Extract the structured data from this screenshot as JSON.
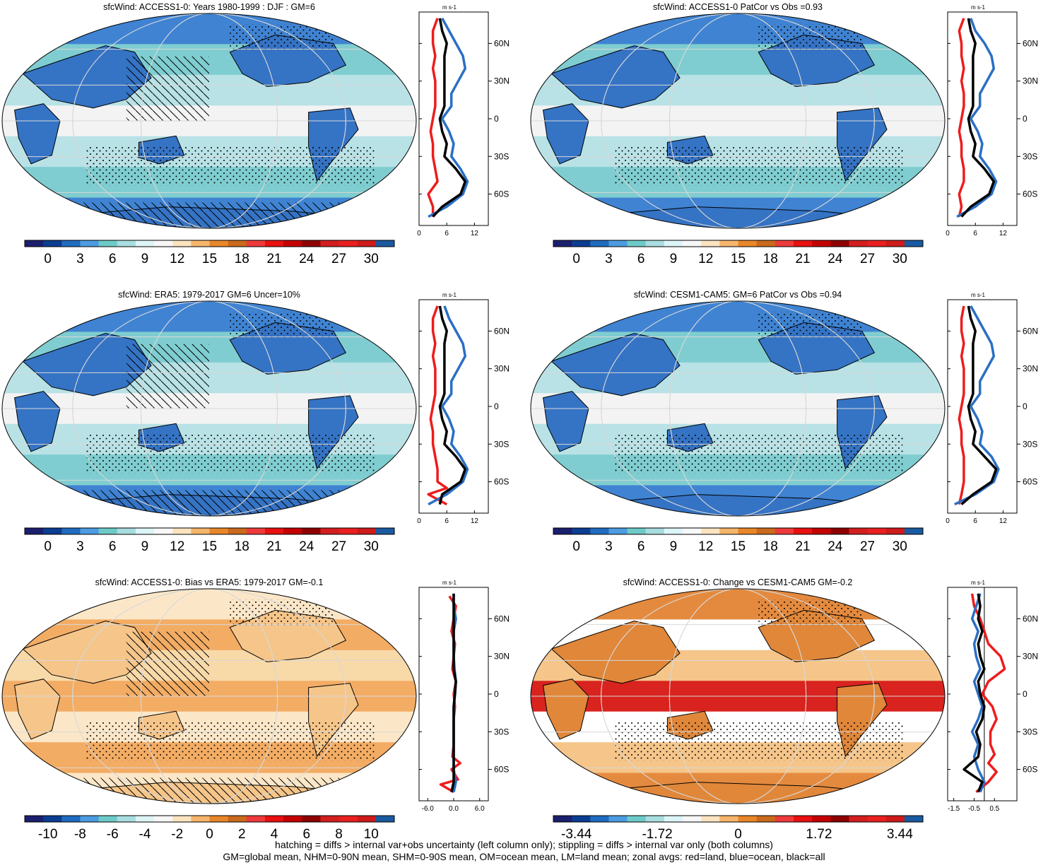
{
  "figure": {
    "footer_line1": "hatching = diffs > internal var+obs uncertainty (left column only); stippling = diffs > internal var only (both columns)",
    "footer_line2": "GM=global mean, NHM=0-90N mean, SHM=0-90S mean, OM=ocean mean, LM=land mean; zonal avgs: red=land, blue=ocean, black=all"
  },
  "colors": {
    "ocean_blue": "#2a6fc4",
    "land_red": "#ee1c1c",
    "all_black": "#000000",
    "coast": "#000000"
  },
  "scales": {
    "abs": {
      "labels": [
        "0",
        "3",
        "6",
        "9",
        "12",
        "15",
        "18",
        "21",
        "24",
        "27",
        "30"
      ],
      "colors": [
        "#1a1f6e",
        "#0b3d91",
        "#1f6bbf",
        "#4d9be0",
        "#6ecac8",
        "#a8dde0",
        "#ddf5f7",
        "#f7f7f7",
        "#fbe3c0",
        "#f6b56c",
        "#e8862a",
        "#c96a1c",
        "#ee3a3a",
        "#e81010",
        "#c40000",
        "#8e0000",
        "#d21e1e",
        "#e82020",
        "#ce1a1a",
        "#1a5aa0"
      ]
    },
    "bias": {
      "labels": [
        "-10",
        "-8",
        "-6",
        "-4",
        "-2",
        "0",
        "2",
        "4",
        "6",
        "8",
        "10"
      ],
      "colors": [
        "#1a1f6e",
        "#0b3d91",
        "#1f6bbf",
        "#4d9be0",
        "#6ecac8",
        "#a8dde0",
        "#ddf5f7",
        "#f7f7f7",
        "#fbe3c0",
        "#f6b56c",
        "#e8862a",
        "#c96a1c",
        "#ee3a3a",
        "#e81010",
        "#c40000",
        "#8e0000",
        "#d21e1e",
        "#e82020",
        "#ce1a1a",
        "#1a5aa0"
      ]
    },
    "change": {
      "labels": [
        "-3.44",
        "-1.72",
        "0",
        "1.72",
        "3.44"
      ],
      "colors": [
        "#1a1f6e",
        "#0b3d91",
        "#1f6bbf",
        "#4d9be0",
        "#6ecac8",
        "#a8dde0",
        "#ddf5f7",
        "#f7f7f7",
        "#fbe3c0",
        "#f6b56c",
        "#e8862a",
        "#c96a1c",
        "#ee3a3a",
        "#e81010",
        "#c40000",
        "#8e0000",
        "#d21e1e",
        "#e82020",
        "#ce1a1a",
        "#1a5aa0"
      ]
    }
  },
  "lat_ticks": [
    "60N",
    "30N",
    "0",
    "30S",
    "60S"
  ],
  "chart_data": [
    {
      "type": "heatmap",
      "title": "sfcWind: ACCESS1-0: Years 1980-1999 : DJF : GM=6",
      "scale": "abs",
      "map_theme": "abs",
      "hatched": true,
      "zonal": {
        "units": "m s-1",
        "xticks": [
          "0",
          "6",
          "12"
        ],
        "xlim": [
          0,
          15
        ],
        "zero_line": false,
        "series": [
          {
            "color_key": "land_red",
            "lat": [
              -78,
              -70,
              -60,
              -50,
              -40,
              -30,
              -20,
              -10,
              0,
              10,
              20,
              30,
              40,
              50,
              60,
              70,
              80
            ],
            "x": [
              3,
              3,
              2,
              4,
              3.5,
              3,
              3,
              2.5,
              3,
              3.5,
              3.5,
              3.5,
              3,
              3.5,
              3,
              3,
              4
            ]
          },
          {
            "color_key": "ocean_blue",
            "lat": [
              -78,
              -70,
              -60,
              -50,
              -40,
              -30,
              -20,
              -10,
              0,
              10,
              20,
              30,
              40,
              50,
              60,
              70,
              80
            ],
            "x": [
              2,
              6,
              9.5,
              10.5,
              9,
              7,
              7.5,
              6.5,
              5,
              7,
              7,
              8.5,
              10,
              9.5,
              8,
              6.5,
              5
            ]
          },
          {
            "color_key": "all_black",
            "lat": [
              -78,
              -70,
              -60,
              -50,
              -40,
              -30,
              -20,
              -10,
              0,
              10,
              20,
              30,
              40,
              50,
              60,
              70,
              80
            ],
            "x": [
              3,
              5,
              9,
              10,
              8,
              5.5,
              6,
              5,
              4.5,
              5.5,
              5.5,
              5.5,
              5.5,
              5.5,
              6,
              5,
              4.5
            ]
          }
        ]
      }
    },
    {
      "type": "heatmap",
      "title": "sfcWind: ACCESS1-0 PatCor vs Obs =0.93",
      "scale": "abs",
      "map_theme": "abs",
      "hatched": false,
      "zonal": {
        "units": "m s-1",
        "xticks": [
          "0",
          "6",
          "12"
        ],
        "xlim": [
          0,
          15
        ],
        "zero_line": false,
        "series": [
          {
            "color_key": "land_red",
            "lat": [
              -78,
              -70,
              -60,
              -50,
              -40,
              -30,
              -20,
              -10,
              0,
              10,
              20,
              30,
              40,
              50,
              60,
              70,
              80
            ],
            "x": [
              2.5,
              3,
              2.5,
              3.5,
              3.5,
              3,
              3,
              2.5,
              3,
              3.5,
              3.5,
              3,
              3.5,
              3,
              3,
              2.5,
              3.5
            ]
          },
          {
            "color_key": "ocean_blue",
            "lat": [
              -78,
              -70,
              -60,
              -50,
              -40,
              -30,
              -20,
              -10,
              0,
              10,
              20,
              30,
              40,
              50,
              60,
              70,
              80
            ],
            "x": [
              2,
              6,
              9.5,
              10.5,
              9,
              7,
              7.5,
              6.5,
              5,
              7,
              7,
              8.5,
              10,
              9.5,
              8,
              6,
              5
            ]
          },
          {
            "color_key": "all_black",
            "lat": [
              -78,
              -70,
              -60,
              -50,
              -40,
              -30,
              -20,
              -10,
              0,
              10,
              20,
              30,
              40,
              50,
              60,
              70,
              80
            ],
            "x": [
              3,
              5,
              9,
              10,
              8,
              5.5,
              6,
              5,
              4.5,
              5.5,
              5.5,
              5.5,
              5.5,
              5.5,
              6,
              5,
              4.5
            ]
          }
        ]
      }
    },
    {
      "type": "heatmap",
      "title": "sfcWind: ERA5: 1979-2017 GM=6 Uncer=10%",
      "scale": "abs",
      "map_theme": "abs",
      "hatched": true,
      "zonal": {
        "units": "m s-1",
        "xticks": [
          "0",
          "6",
          "12"
        ],
        "xlim": [
          0,
          15
        ],
        "zero_line": false,
        "series": [
          {
            "color_key": "land_red",
            "lat": [
              -78,
              -70,
              -65,
              -60,
              -50,
              -40,
              -30,
              -20,
              -10,
              0,
              10,
              20,
              30,
              40,
              50,
              60,
              70,
              80
            ],
            "x": [
              6,
              2,
              6,
              4,
              4,
              3.5,
              3,
              3,
              2.5,
              3,
              3.5,
              3.5,
              3.5,
              3,
              3.5,
              3,
              3,
              4
            ]
          },
          {
            "color_key": "ocean_blue",
            "lat": [
              -78,
              -70,
              -60,
              -50,
              -40,
              -30,
              -20,
              -10,
              0,
              10,
              20,
              30,
              40,
              50,
              60,
              70,
              80
            ],
            "x": [
              2,
              6,
              9.5,
              10.5,
              9,
              7,
              7.5,
              6.5,
              5,
              7,
              7,
              8.5,
              10,
              9.5,
              8,
              6.5,
              5.5
            ]
          },
          {
            "color_key": "all_black",
            "lat": [
              -78,
              -70,
              -60,
              -50,
              -40,
              -30,
              -20,
              -10,
              0,
              10,
              20,
              30,
              40,
              50,
              60,
              70,
              80
            ],
            "x": [
              4.5,
              5,
              9,
              10,
              8,
              5.5,
              6,
              5,
              4.5,
              5.5,
              5.5,
              5.5,
              5.5,
              5.5,
              6,
              5,
              4.5
            ]
          }
        ]
      }
    },
    {
      "type": "heatmap",
      "title": "sfcWind: CESM1-CAM5: GM=6 PatCor vs Obs =0.94",
      "scale": "abs",
      "map_theme": "abs",
      "hatched": false,
      "zonal": {
        "units": "m s-1",
        "xticks": [
          "0",
          "6",
          "12"
        ],
        "xlim": [
          0,
          15
        ],
        "zero_line": false,
        "series": [
          {
            "color_key": "land_red",
            "lat": [
              -78,
              -70,
              -60,
              -50,
              -40,
              -30,
              -20,
              -10,
              0,
              10,
              20,
              30,
              40,
              50,
              60,
              70,
              80
            ],
            "x": [
              2.5,
              3,
              3.5,
              3.5,
              3.5,
              3,
              3,
              2.5,
              3,
              3.5,
              3.5,
              3.5,
              3,
              3.5,
              3,
              3,
              3.5
            ]
          },
          {
            "color_key": "ocean_blue",
            "lat": [
              -78,
              -70,
              -60,
              -50,
              -40,
              -30,
              -20,
              -10,
              0,
              10,
              20,
              30,
              40,
              50,
              60,
              70,
              80
            ],
            "x": [
              1.5,
              6,
              10,
              11,
              9.5,
              7,
              7.5,
              6.5,
              5,
              7,
              7,
              8.5,
              10,
              9.5,
              8,
              6.5,
              5
            ]
          },
          {
            "color_key": "all_black",
            "lat": [
              -78,
              -70,
              -60,
              -50,
              -40,
              -30,
              -20,
              -10,
              0,
              10,
              20,
              30,
              40,
              50,
              60,
              70,
              80
            ],
            "x": [
              3,
              5.5,
              9.5,
              10.5,
              8,
              5.5,
              6,
              5,
              4.5,
              5.5,
              5.5,
              5.5,
              5.5,
              5.5,
              6,
              5,
              4.5
            ]
          }
        ]
      }
    },
    {
      "type": "heatmap",
      "title": "sfcWind: ACCESS1-0: Bias vs ERA5: 1979-2017 GM=-0.1",
      "scale": "bias",
      "map_theme": "bias",
      "hatched": true,
      "zonal": {
        "units": "m s-1",
        "xticks": [
          "-6.0",
          "0.0",
          "6.0"
        ],
        "xlim": [
          -8,
          8
        ],
        "zero_line": false,
        "series": [
          {
            "color_key": "land_red",
            "lat": [
              -78,
              -72,
              -68,
              -60,
              -55,
              -50,
              -40,
              -30,
              -20,
              -10,
              0,
              10,
              20,
              30,
              40,
              50,
              60,
              70,
              78
            ],
            "x": [
              0,
              -3,
              1,
              -0.5,
              1.5,
              -0.3,
              0,
              0,
              0,
              0.3,
              0,
              0.5,
              -0.3,
              0,
              0.3,
              -0.5,
              0,
              0.5,
              -1
            ]
          },
          {
            "color_key": "ocean_blue",
            "lat": [
              -78,
              -70,
              -60,
              -50,
              -40,
              -30,
              -20,
              -10,
              0,
              10,
              20,
              30,
              40,
              50,
              60,
              70,
              80
            ],
            "x": [
              0,
              0.5,
              0,
              0,
              0,
              0,
              0,
              0,
              0.3,
              0.5,
              0.2,
              0,
              0,
              0,
              0.5,
              0,
              0
            ]
          },
          {
            "color_key": "all_black",
            "lat": [
              -78,
              -70,
              -60,
              -50,
              -40,
              -30,
              -20,
              -10,
              0,
              10,
              20,
              30,
              40,
              50,
              60,
              70,
              80
            ],
            "x": [
              -0.5,
              0,
              0,
              0,
              0,
              0,
              0,
              0,
              0.3,
              0.5,
              0,
              0,
              0,
              0,
              0,
              0,
              0
            ]
          }
        ]
      }
    },
    {
      "type": "heatmap",
      "title": "sfcWind: ACCESS1-0: Change vs CESM1-CAM5 GM=-0.2",
      "scale": "change",
      "map_theme": "change",
      "hatched": false,
      "zonal": {
        "units": "m s-1",
        "xticks": [
          "-1.5",
          "-0.5",
          "0.5"
        ],
        "xlim": [
          -1.8,
          1.6
        ],
        "zero_line": true,
        "series": [
          {
            "color_key": "land_red",
            "lat": [
              -78,
              -70,
              -62,
              -55,
              -48,
              -40,
              -30,
              -20,
              -10,
              0,
              10,
              20,
              30,
              40,
              50,
              60,
              70,
              80
            ],
            "x": [
              -0.4,
              0.2,
              0.6,
              0.2,
              0.5,
              0.3,
              0.3,
              0.6,
              0.4,
              -0.1,
              0.2,
              1.0,
              0.8,
              0.2,
              0,
              -0.2,
              -0.5,
              -0.6
            ]
          },
          {
            "color_key": "ocean_blue",
            "lat": [
              -78,
              -70,
              -60,
              -50,
              -40,
              -30,
              -20,
              -10,
              0,
              10,
              20,
              30,
              40,
              50,
              60,
              70,
              80
            ],
            "x": [
              -0.2,
              0,
              -0.3,
              -0.5,
              -0.3,
              -0.6,
              -0.3,
              -0.1,
              -0.3,
              -0.5,
              -0.2,
              -0.4,
              -0.5,
              -0.3,
              -0.6,
              -0.4,
              -0.2
            ]
          },
          {
            "color_key": "all_black",
            "lat": [
              -78,
              -70,
              -60,
              -50,
              -40,
              -30,
              -20,
              -10,
              0,
              10,
              20,
              30,
              40,
              50,
              60,
              70,
              80
            ],
            "x": [
              -0.3,
              -0.1,
              -1.0,
              -0.3,
              -0.2,
              -0.4,
              -0.1,
              0,
              -0.2,
              -0.3,
              0,
              -0.2,
              -0.3,
              -0.1,
              -0.3,
              -0.2,
              -0.3
            ]
          }
        ]
      }
    }
  ]
}
